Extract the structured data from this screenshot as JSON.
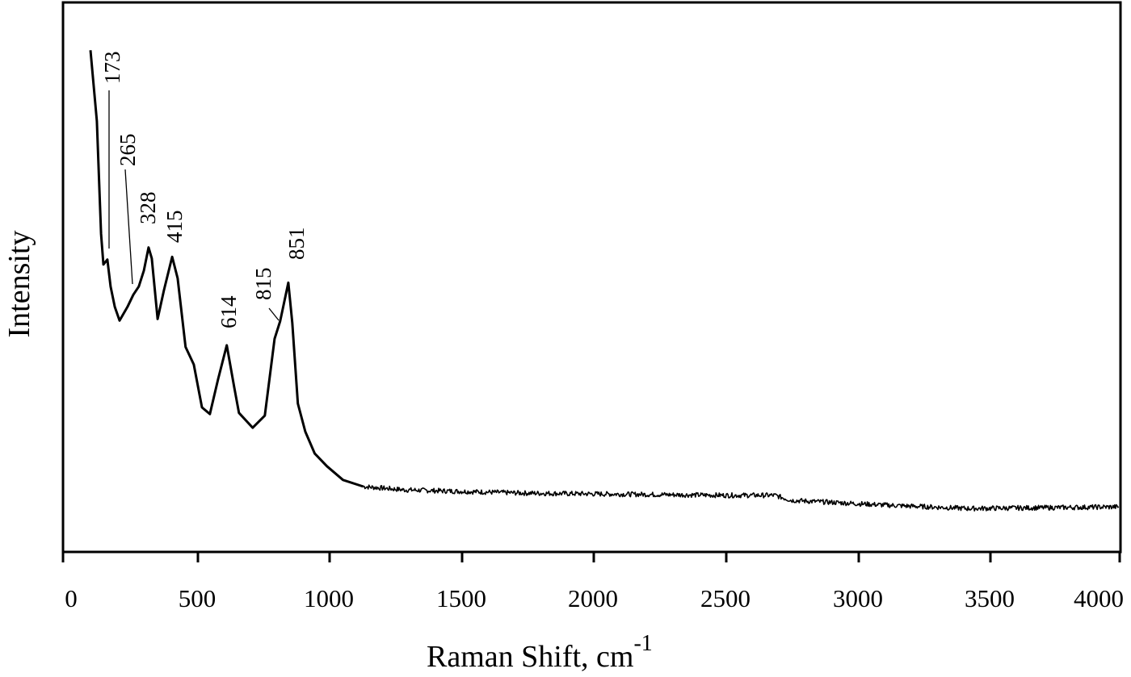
{
  "chart_data": {
    "type": "line",
    "title": "",
    "xlabel": "Raman Shift, cm",
    "xlabel_superscript": "-1",
    "ylabel": "Intensity",
    "xlim": [
      0,
      4000
    ],
    "ylim": [
      0,
      100
    ],
    "y_units": "arbitrary (no tick labels shown)",
    "grid": false,
    "legend": null,
    "x_ticks": [
      0,
      500,
      1000,
      1500,
      2000,
      2500,
      3000,
      3500,
      4000
    ],
    "x_tick_labels": [
      "0",
      "500",
      "1000",
      "1500",
      "2000",
      "2500",
      "3000",
      "3500",
      "4000"
    ],
    "series": [
      {
        "name": "Raman spectrum",
        "x": [
          104,
          128,
          144,
          153,
          168,
          180,
          196,
          214,
          244,
          266,
          287,
          306,
          324,
          336,
          358,
          382,
          413,
          434,
          464,
          495,
          526,
          556,
          587,
          620,
          648,
          666,
          718,
          764,
          801,
          822,
          853,
          868,
          889,
          917,
          953,
          999,
          1060,
          1137,
          1290,
          1748,
          2512,
          2695,
          2756,
          3123,
          3429,
          3997
        ],
        "y": [
          91.3,
          78.4,
          57.9,
          52.3,
          53.2,
          48.3,
          44.6,
          42.1,
          44.6,
          46.8,
          48.3,
          51.2,
          55.4,
          53.4,
          42.4,
          47.6,
          53.7,
          49.8,
          37.3,
          34.1,
          26.3,
          25.1,
          31.4,
          37.6,
          30.0,
          25.3,
          22.6,
          24.8,
          38.8,
          42.0,
          49.0,
          41.7,
          27.0,
          21.9,
          17.9,
          15.6,
          13.1,
          11.9,
          11.3,
          10.7,
          10.3,
          10.3,
          9.4,
          8.5,
          7.9,
          8.2
        ]
      }
    ],
    "annotations": [
      {
        "label": "173",
        "x": 173,
        "has_leader": true
      },
      {
        "label": "265",
        "x": 265,
        "has_leader": true
      },
      {
        "label": "328",
        "x": 328,
        "has_leader": false
      },
      {
        "label": "415",
        "x": 415,
        "has_leader": false
      },
      {
        "label": "614",
        "x": 614,
        "has_leader": false
      },
      {
        "label": "815",
        "x": 815,
        "has_leader": true
      },
      {
        "label": "851",
        "x": 851,
        "has_leader": false
      }
    ]
  },
  "labels": {
    "xlabel": "Raman Shift, cm",
    "xlabel_sup": "-1",
    "ylabel": "Intensity",
    "ticks": [
      "0",
      "500",
      "1000",
      "1500",
      "2000",
      "2500",
      "3000",
      "3500",
      "4000"
    ],
    "peaks": [
      "173",
      "265",
      "328",
      "415",
      "614",
      "815",
      "851"
    ]
  }
}
